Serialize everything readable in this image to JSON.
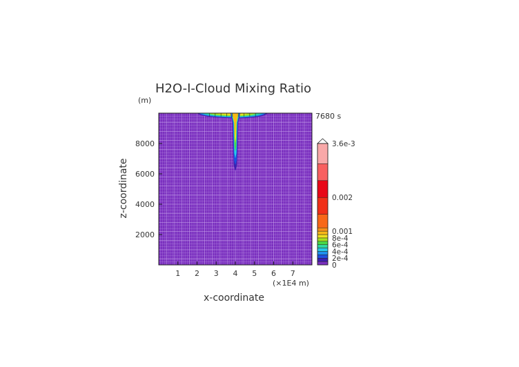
{
  "chart_data": {
    "type": "heatmap",
    "title": "H2O-I-Cloud Mixing Ratio",
    "time_label": "7680 s",
    "xlabel": "x-coordinate",
    "x_unit": "(×1E4 m)",
    "ylabel": "z-coordinate",
    "y_unit": "(m)",
    "xlim": [
      0,
      8
    ],
    "ylim": [
      0,
      10000
    ],
    "x_ticks": [
      1,
      2,
      3,
      4,
      5,
      6,
      7
    ],
    "y_ticks": [
      2000,
      4000,
      6000,
      8000
    ],
    "x_tick_labels": [
      "1",
      "2",
      "3",
      "4",
      "5",
      "6",
      "7"
    ],
    "y_tick_labels": [
      "2000",
      "4000",
      "6000",
      "8000"
    ],
    "grid": true,
    "background_level": 0,
    "colorbar": {
      "placement": "right",
      "min": 0,
      "max": 0.0036,
      "tick_values": [
        0,
        0.0002,
        0.0004,
        0.0006,
        0.0008,
        0.001,
        0.002,
        0.0036
      ],
      "tick_labels": [
        "0",
        "2e-4",
        "4e-4",
        "6e-4",
        "8e-4",
        "0.001",
        "0.002",
        "3.6e-3"
      ],
      "levels": [
        0,
        0.0001,
        0.0002,
        0.0003,
        0.0004,
        0.0005,
        0.0006,
        0.0007,
        0.0008,
        0.0009,
        0.001,
        0.0011,
        0.0015,
        0.002,
        0.0025,
        0.003,
        0.0036
      ],
      "colors": [
        "#7a2fbf",
        "#3d1fb0",
        "#1f50e0",
        "#1f90ee",
        "#28c8e8",
        "#30d8a0",
        "#48d848",
        "#a8e020",
        "#f0e020",
        "#f8b818",
        "#f89018",
        "#f86818",
        "#f03018",
        "#e80818",
        "#f86060",
        "#f8a8a8"
      ]
    },
    "features": [
      {
        "name": "anvil",
        "x_range": [
          2.0,
          5.7
        ],
        "z_range": [
          9700,
          10000
        ],
        "peak_value": 0.0008
      },
      {
        "name": "column",
        "x_center": 4.0,
        "z_range": [
          6200,
          10000
        ],
        "peak_value": 0.0009
      }
    ]
  }
}
